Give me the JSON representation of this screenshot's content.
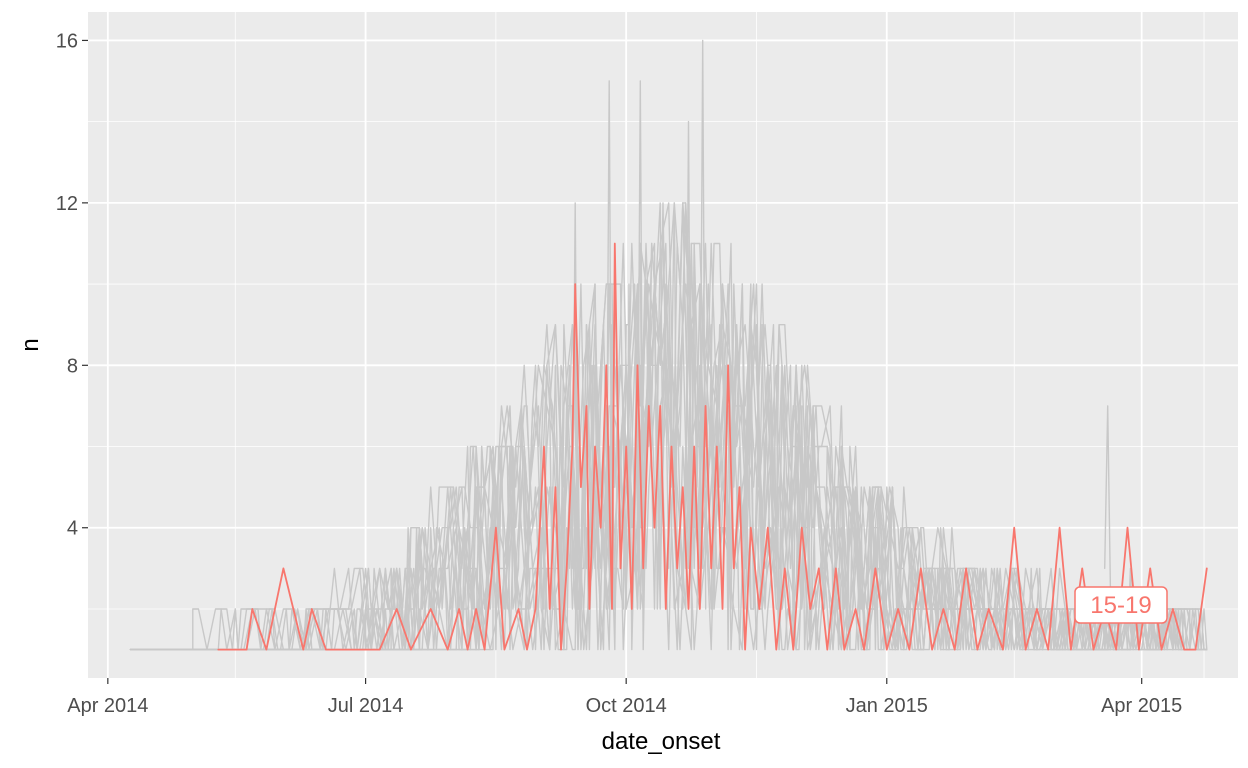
{
  "chart_data": {
    "type": "line",
    "title": "",
    "xlabel": "date_onset",
    "ylabel": "n",
    "x_ticks": [
      "Apr 2014",
      "Jul 2014",
      "Oct 2014",
      "Jan 2015",
      "Apr 2015"
    ],
    "y_ticks": [
      4,
      8,
      12,
      16
    ],
    "xlim": [
      "2014-03-25",
      "2015-05-05"
    ],
    "ylim": [
      0.3,
      16.7
    ],
    "grid": true,
    "legend": "none",
    "panel_color": "#ebebeb",
    "background_series_color": "#c8c8c8",
    "highlight_color": "#f8766d",
    "highlight_label": "15-19",
    "highlight_series": {
      "name": "15-19",
      "points": [
        [
          "2014-05-10",
          1
        ],
        [
          "2014-05-20",
          1
        ],
        [
          "2014-05-22",
          2
        ],
        [
          "2014-05-27",
          1
        ],
        [
          "2014-06-02",
          3
        ],
        [
          "2014-06-09",
          1
        ],
        [
          "2014-06-12",
          2
        ],
        [
          "2014-06-17",
          1
        ],
        [
          "2014-06-25",
          1
        ],
        [
          "2014-07-06",
          1
        ],
        [
          "2014-07-12",
          2
        ],
        [
          "2014-07-17",
          1
        ],
        [
          "2014-07-24",
          2
        ],
        [
          "2014-07-30",
          1
        ],
        [
          "2014-08-03",
          2
        ],
        [
          "2014-08-06",
          1
        ],
        [
          "2014-08-09",
          2
        ],
        [
          "2014-08-12",
          1
        ],
        [
          "2014-08-16",
          4
        ],
        [
          "2014-08-19",
          1
        ],
        [
          "2014-08-24",
          2
        ],
        [
          "2014-08-27",
          1
        ],
        [
          "2014-08-30",
          2
        ],
        [
          "2014-09-02",
          6
        ],
        [
          "2014-09-04",
          2
        ],
        [
          "2014-09-06",
          5
        ],
        [
          "2014-09-08",
          1
        ],
        [
          "2014-09-10",
          3
        ],
        [
          "2014-09-12",
          6
        ],
        [
          "2014-09-13",
          10
        ],
        [
          "2014-09-15",
          5
        ],
        [
          "2014-09-17",
          7
        ],
        [
          "2014-09-18",
          2
        ],
        [
          "2014-09-20",
          6
        ],
        [
          "2014-09-22",
          4
        ],
        [
          "2014-09-24",
          8
        ],
        [
          "2014-09-26",
          2
        ],
        [
          "2014-09-27",
          11
        ],
        [
          "2014-09-29",
          3
        ],
        [
          "2014-10-01",
          6
        ],
        [
          "2014-10-03",
          2
        ],
        [
          "2014-10-05",
          8
        ],
        [
          "2014-10-07",
          3
        ],
        [
          "2014-10-09",
          7
        ],
        [
          "2014-10-11",
          4
        ],
        [
          "2014-10-13",
          7
        ],
        [
          "2014-10-15",
          2
        ],
        [
          "2014-10-17",
          6
        ],
        [
          "2014-10-19",
          3
        ],
        [
          "2014-10-21",
          5
        ],
        [
          "2014-10-23",
          2
        ],
        [
          "2014-10-25",
          6
        ],
        [
          "2014-10-27",
          2
        ],
        [
          "2014-10-29",
          7
        ],
        [
          "2014-10-31",
          3
        ],
        [
          "2014-11-02",
          6
        ],
        [
          "2014-11-04",
          2
        ],
        [
          "2014-11-06",
          8
        ],
        [
          "2014-11-08",
          3
        ],
        [
          "2014-11-10",
          5
        ],
        [
          "2014-11-12",
          1
        ],
        [
          "2014-11-14",
          4
        ],
        [
          "2014-11-17",
          2
        ],
        [
          "2014-11-20",
          4
        ],
        [
          "2014-11-23",
          1
        ],
        [
          "2014-11-26",
          3
        ],
        [
          "2014-11-29",
          1
        ],
        [
          "2014-12-02",
          4
        ],
        [
          "2014-12-05",
          2
        ],
        [
          "2014-12-08",
          3
        ],
        [
          "2014-12-11",
          1
        ],
        [
          "2014-12-14",
          3
        ],
        [
          "2014-12-17",
          1
        ],
        [
          "2014-12-21",
          2
        ],
        [
          "2014-12-24",
          1
        ],
        [
          "2014-12-28",
          3
        ],
        [
          "2015-01-01",
          1
        ],
        [
          "2015-01-05",
          2
        ],
        [
          "2015-01-09",
          1
        ],
        [
          "2015-01-13",
          3
        ],
        [
          "2015-01-17",
          1
        ],
        [
          "2015-01-21",
          2
        ],
        [
          "2015-01-25",
          1
        ],
        [
          "2015-01-29",
          3
        ],
        [
          "2015-02-02",
          1
        ],
        [
          "2015-02-06",
          2
        ],
        [
          "2015-02-11",
          1
        ],
        [
          "2015-02-15",
          4
        ],
        [
          "2015-02-19",
          1
        ],
        [
          "2015-02-23",
          2
        ],
        [
          "2015-02-27",
          1
        ],
        [
          "2015-03-03",
          4
        ],
        [
          "2015-03-07",
          1
        ],
        [
          "2015-03-11",
          3
        ],
        [
          "2015-03-15",
          1
        ],
        [
          "2015-03-19",
          2
        ],
        [
          "2015-03-23",
          1
        ],
        [
          "2015-03-27",
          4
        ],
        [
          "2015-03-31",
          1
        ],
        [
          "2015-04-04",
          3
        ],
        [
          "2015-04-08",
          1
        ],
        [
          "2015-04-12",
          2
        ],
        [
          "2015-04-16",
          1
        ],
        [
          "2015-04-20",
          1
        ],
        [
          "2015-04-24",
          3
        ]
      ]
    }
  }
}
